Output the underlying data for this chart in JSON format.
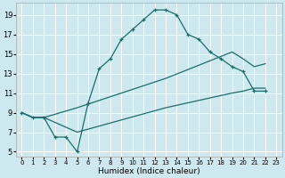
{
  "xlabel": "Humidex (Indice chaleur)",
  "bg_color": "#cde8ee",
  "grid_color": "#ffffff",
  "line_color": "#1a6e6a",
  "xlim": [
    -0.5,
    23.5
  ],
  "ylim": [
    4.5,
    20.2
  ],
  "xticks": [
    0,
    1,
    2,
    3,
    4,
    5,
    6,
    7,
    8,
    9,
    10,
    11,
    12,
    13,
    14,
    15,
    16,
    17,
    18,
    19,
    20,
    21,
    22,
    23
  ],
  "yticks": [
    5,
    7,
    9,
    11,
    13,
    15,
    17,
    19
  ],
  "line1_x": [
    0,
    1,
    2,
    3,
    4,
    5,
    6,
    7,
    8,
    9,
    10,
    11,
    12,
    13,
    14,
    15,
    16,
    17,
    18,
    19,
    20,
    21,
    22
  ],
  "line1_y": [
    9,
    8.5,
    8.5,
    6.5,
    6.5,
    5.0,
    10.0,
    13.5,
    14.5,
    16.5,
    17.5,
    18.5,
    19.5,
    19.5,
    19.0,
    17.0,
    16.5,
    15.2,
    14.5,
    13.7,
    13.2,
    11.2,
    11.2
  ],
  "line2_x": [
    0,
    1,
    2,
    5,
    13,
    19,
    20,
    21,
    22
  ],
  "line2_y": [
    9,
    8.5,
    8.5,
    9.5,
    12.5,
    15.2,
    14.5,
    13.7,
    14.0
  ],
  "line3_x": [
    0,
    1,
    2,
    5,
    13,
    19,
    20,
    21,
    22
  ],
  "line3_y": [
    9,
    8.5,
    8.5,
    7.0,
    9.5,
    11.0,
    11.2,
    11.5,
    11.5
  ]
}
